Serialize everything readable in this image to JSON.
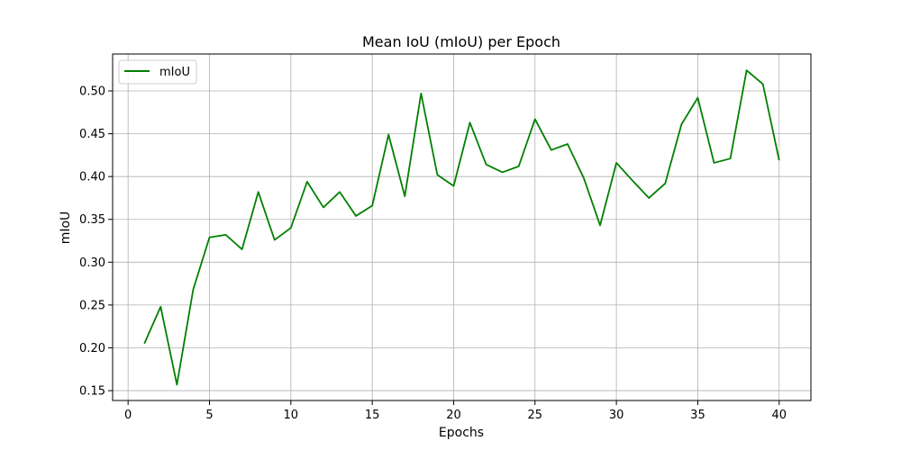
{
  "chart_data": {
    "type": "line",
    "title": "Mean IoU (mIoU) per Epoch",
    "xlabel": "Epochs",
    "ylabel": "mIoU",
    "xlim": [
      -0.95,
      41.95
    ],
    "ylim": [
      0.1385,
      0.5431
    ],
    "xticks": [
      0,
      5,
      10,
      15,
      20,
      25,
      30,
      35,
      40
    ],
    "yticks": [
      0.15,
      0.2,
      0.25,
      0.3,
      0.35,
      0.4,
      0.45,
      0.5
    ],
    "ytick_labels": [
      "0.15",
      "0.20",
      "0.25",
      "0.30",
      "0.35",
      "0.40",
      "0.45",
      "0.50"
    ],
    "grid": true,
    "legend_position": "top-left",
    "series": [
      {
        "name": "mIoU",
        "color": "#008000",
        "x": [
          1,
          2,
          3,
          4,
          5,
          6,
          7,
          8,
          9,
          10,
          11,
          12,
          13,
          14,
          15,
          16,
          17,
          18,
          19,
          20,
          21,
          22,
          23,
          24,
          25,
          26,
          27,
          28,
          29,
          30,
          31,
          32,
          33,
          34,
          35,
          36,
          37,
          38,
          39,
          40
        ],
        "values": [
          0.205,
          0.248,
          0.157,
          0.268,
          0.329,
          0.332,
          0.315,
          0.382,
          0.326,
          0.34,
          0.394,
          0.364,
          0.382,
          0.354,
          0.366,
          0.449,
          0.377,
          0.497,
          0.402,
          0.389,
          0.463,
          0.414,
          0.405,
          0.412,
          0.467,
          0.431,
          0.438,
          0.398,
          0.343,
          0.416,
          0.395,
          0.375,
          0.392,
          0.461,
          0.492,
          0.416,
          0.421,
          0.524,
          0.508,
          0.419
        ]
      }
    ]
  }
}
